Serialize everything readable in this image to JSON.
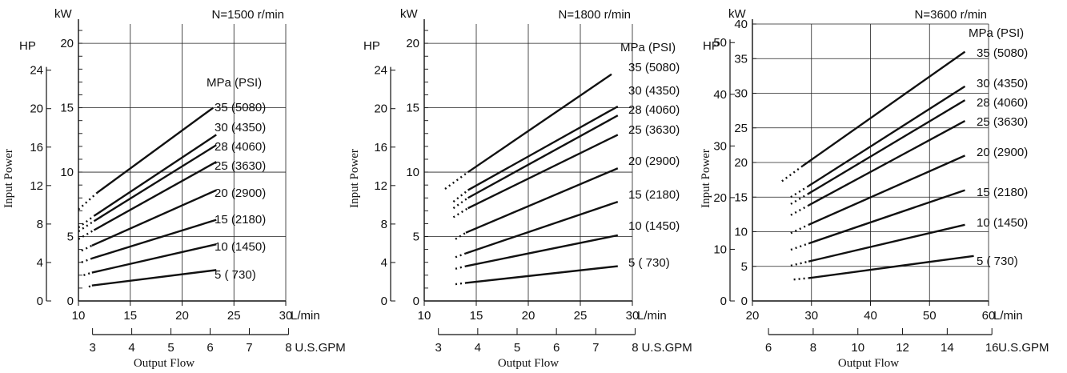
{
  "chart_data": [
    {
      "type": "line",
      "title": "N=1500 r/min",
      "xlabel": "L/min",
      "x2label": "U.S.GPM",
      "flow_label": "Output Flow",
      "ylabel": "Input Power",
      "kw_label": "kW",
      "hp_label": "HP",
      "legend_header": "MPa (PSI)",
      "xlim": [
        10,
        30
      ],
      "x_ticks": [
        10,
        15,
        20,
        25,
        30
      ],
      "gpm_ticks": [
        3,
        4,
        5,
        6,
        7,
        8
      ],
      "kw_ylim": [
        0,
        21.5
      ],
      "kw_grid": [
        5,
        10,
        15,
        20
      ],
      "kw_tick_labels": [
        0,
        5,
        10,
        15,
        20
      ],
      "hp_ticks": [
        0,
        4,
        8,
        12,
        16,
        20,
        24
      ],
      "series": [
        {
          "name": "35 (5080)",
          "x": [
            11.8,
            23.0
          ],
          "y": [
            8.4,
            15.0
          ],
          "dotted_from": 10.0,
          "dotted_y": 7.1
        },
        {
          "name": "30 (4350)",
          "x": [
            11.5,
            23.3
          ],
          "y": [
            6.6,
            12.9
          ],
          "dotted_from": 10.0,
          "dotted_y": 5.7
        },
        {
          "name": "28 (4060)",
          "x": [
            11.5,
            23.3
          ],
          "y": [
            6.2,
            12.1
          ],
          "dotted_from": 10.0,
          "dotted_y": 5.4
        },
        {
          "name": "25 (3630)",
          "x": [
            11.5,
            23.3
          ],
          "y": [
            5.5,
            10.8
          ],
          "dotted_from": 10.0,
          "dotted_y": 4.8
        },
        {
          "name": "20 (2900)",
          "x": [
            11.3,
            23.3
          ],
          "y": [
            4.3,
            8.6
          ],
          "dotted_from": 10.3,
          "dotted_y": 3.9
        },
        {
          "name": "15 (2180)",
          "x": [
            11.3,
            23.3
          ],
          "y": [
            3.3,
            6.3
          ],
          "dotted_from": 10.3,
          "dotted_y": 3.0
        },
        {
          "name": "10 (1450)",
          "x": [
            11.3,
            23.3
          ],
          "y": [
            2.2,
            4.4
          ],
          "dotted_from": 10.5,
          "dotted_y": 2.0
        },
        {
          "name": "5 (  730)",
          "x": [
            11.3,
            23.3
          ],
          "y": [
            1.2,
            2.4
          ],
          "dotted_from": 11.0,
          "dotted_y": 1.1
        }
      ]
    },
    {
      "type": "line",
      "title": "N=1800 r/min",
      "xlabel": "L/min",
      "x2label": "U.S.GPM",
      "flow_label": "Output Flow",
      "ylabel": "Input Power",
      "kw_label": "kW",
      "hp_label": "HP",
      "legend_header": "MPa (PSI)",
      "xlim": [
        10,
        30
      ],
      "x_ticks": [
        10,
        15,
        20,
        25,
        30
      ],
      "gpm_ticks": [
        3,
        4,
        5,
        6,
        7,
        8
      ],
      "kw_ylim": [
        0,
        21.5
      ],
      "kw_grid": [
        5,
        10,
        15,
        20
      ],
      "kw_tick_labels": [
        0,
        5,
        10,
        15,
        20
      ],
      "hp_ticks": [
        0,
        4,
        8,
        12,
        16,
        20,
        24
      ],
      "series": [
        {
          "name": "35 (5080)",
          "x": [
            14.2,
            28.0
          ],
          "y": [
            10.0,
            17.6
          ],
          "dotted_from": 12.0,
          "dotted_y": 8.7
        },
        {
          "name": "30 (4350)",
          "x": [
            14.2,
            28.6
          ],
          "y": [
            8.6,
            15.1
          ],
          "dotted_from": 12.8,
          "dotted_y": 7.7
        },
        {
          "name": "28 (4060)",
          "x": [
            14.2,
            28.6
          ],
          "y": [
            8.0,
            14.4
          ],
          "dotted_from": 12.8,
          "dotted_y": 7.2
        },
        {
          "name": "25 (3630)",
          "x": [
            14.2,
            28.6
          ],
          "y": [
            7.2,
            12.9
          ],
          "dotted_from": 12.8,
          "dotted_y": 6.5
        },
        {
          "name": "20 (2900)",
          "x": [
            14.0,
            28.6
          ],
          "y": [
            5.3,
            10.3
          ],
          "dotted_from": 13.0,
          "dotted_y": 4.8
        },
        {
          "name": "15 (2180)",
          "x": [
            14.0,
            28.6
          ],
          "y": [
            3.7,
            7.7
          ],
          "dotted_from": 13.0,
          "dotted_y": 3.4
        },
        {
          "name": "10 (1450)",
          "x": [
            14.0,
            28.6
          ],
          "y": [
            2.7,
            5.1
          ],
          "dotted_from": 13.0,
          "dotted_y": 2.5
        },
        {
          "name": "5 (  730)",
          "x": [
            14.0,
            28.6
          ],
          "y": [
            1.4,
            2.7
          ],
          "dotted_from": 13.0,
          "dotted_y": 1.3
        }
      ]
    },
    {
      "type": "line",
      "title": "N=3600 r/min",
      "xlabel": "L/min",
      "x2label": "U.S.GPM",
      "flow_label": "Output Flow",
      "ylabel": "Input Power",
      "kw_label": "kW",
      "hp_label": "HP",
      "legend_header": "MPa (PSI)",
      "xlim": [
        20,
        60
      ],
      "x_ticks": [
        20,
        30,
        40,
        50,
        60
      ],
      "gpm_ticks": [
        6,
        8,
        10,
        12,
        14,
        16
      ],
      "kw_ylim": [
        0,
        40
      ],
      "kw_grid": [
        5,
        10,
        15,
        20,
        25,
        30,
        35,
        40
      ],
      "kw_tick_labels": [
        0,
        5,
        10,
        15,
        20,
        25,
        30,
        35,
        40
      ],
      "hp_ticks": [
        0,
        10,
        20,
        30,
        40,
        50
      ],
      "series": [
        {
          "name": "35 (5080)",
          "x": [
            28.5,
            56.0
          ],
          "y": [
            19.5,
            36.0
          ],
          "dotted_from": 25.0,
          "dotted_y": 17.3
        },
        {
          "name": "30 (4350)",
          "x": [
            29.5,
            56.0
          ],
          "y": [
            16.6,
            31.0
          ],
          "dotted_from": 26.5,
          "dotted_y": 15.0
        },
        {
          "name": "28 (4060)",
          "x": [
            29.5,
            56.0
          ],
          "y": [
            15.5,
            29.0
          ],
          "dotted_from": 26.5,
          "dotted_y": 14.0
        },
        {
          "name": "25 (3630)",
          "x": [
            29.5,
            56.0
          ],
          "y": [
            13.8,
            26.0
          ],
          "dotted_from": 26.5,
          "dotted_y": 12.4
        },
        {
          "name": "20 (2900)",
          "x": [
            29.5,
            56.0
          ],
          "y": [
            11.0,
            21.0
          ],
          "dotted_from": 26.5,
          "dotted_y": 9.8
        },
        {
          "name": "15 (2180)",
          "x": [
            29.5,
            56.0
          ],
          "y": [
            8.3,
            16.0
          ],
          "dotted_from": 26.5,
          "dotted_y": 7.4
        },
        {
          "name": "10 (1450)",
          "x": [
            29.5,
            56.0
          ],
          "y": [
            5.7,
            11.0
          ],
          "dotted_from": 26.5,
          "dotted_y": 5.1
        },
        {
          "name": "5 (  730)",
          "x": [
            29.5,
            57.5
          ],
          "y": [
            3.3,
            6.5
          ],
          "dotted_from": 27.0,
          "dotted_y": 3.1
        }
      ]
    }
  ]
}
